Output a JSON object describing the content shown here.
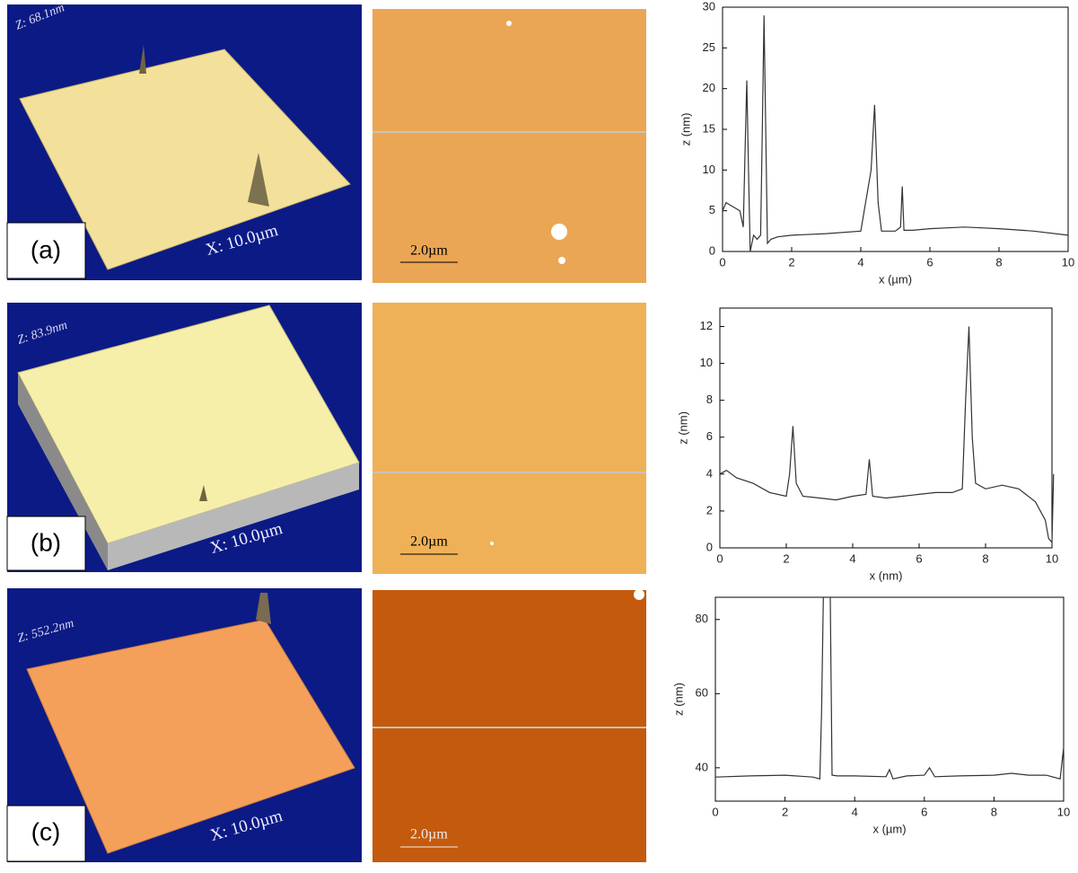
{
  "panels": [
    {
      "label": "(a)",
      "z_range": "Z: 68.1nm",
      "x_range": "X: 10.0µm",
      "scale_bar": "2.0µm"
    },
    {
      "label": "(b)",
      "z_range": "Z: 83.9nm",
      "x_range": "X: 10.0µm",
      "scale_bar": "2.0µm"
    },
    {
      "label": "(c)",
      "z_range": "Z: 552.2nm",
      "x_range": "X: 10.0µm",
      "scale_bar": "2.0µm"
    }
  ],
  "chart_data": [
    {
      "type": "line",
      "x_label": "x (µm)",
      "y_label": "z (nm)",
      "color": "#333333",
      "x": [
        0,
        0.1,
        0.3,
        0.5,
        0.6,
        0.65,
        0.7,
        0.75,
        0.8,
        0.9,
        1.0,
        1.1,
        1.15,
        1.2,
        1.25,
        1.3,
        1.4,
        1.6,
        2,
        3,
        4,
        4.3,
        4.4,
        4.5,
        4.6,
        5,
        5.15,
        5.2,
        5.25,
        5.5,
        6,
        7,
        8,
        9,
        10
      ],
      "values": [
        5,
        6,
        5.5,
        5,
        3,
        12,
        21,
        10,
        0,
        2,
        1.5,
        2,
        15,
        29,
        15,
        1,
        1.5,
        1.8,
        2,
        2.2,
        2.5,
        10,
        18,
        6,
        2.5,
        2.5,
        3,
        8,
        2.6,
        2.6,
        2.8,
        3,
        2.8,
        2.5,
        2
      ],
      "xlim": [
        0,
        10
      ],
      "ylim": [
        0,
        30
      ],
      "xticks": [
        0,
        2,
        4,
        6,
        8,
        10
      ],
      "yticks": [
        0,
        5,
        10,
        15,
        20,
        25,
        30
      ]
    },
    {
      "type": "line",
      "x_label": "x (nm)",
      "y_label": "z (nm)",
      "color": "#333333",
      "x": [
        0,
        0.2,
        0.5,
        1,
        1.5,
        2,
        2.1,
        2.2,
        2.3,
        2.5,
        3,
        3.5,
        4,
        4.4,
        4.5,
        4.6,
        5,
        5.5,
        6,
        6.5,
        7,
        7.3,
        7.4,
        7.5,
        7.6,
        7.7,
        8,
        8.5,
        9,
        9.5,
        9.8,
        9.9,
        10,
        10.05
      ],
      "values": [
        4,
        4.2,
        3.8,
        3.5,
        3,
        2.8,
        4,
        6.6,
        3.5,
        2.8,
        2.7,
        2.6,
        2.8,
        2.9,
        4.8,
        2.8,
        2.7,
        2.8,
        2.9,
        3,
        3,
        3.2,
        8,
        12,
        6,
        3.5,
        3.2,
        3.4,
        3.2,
        2.5,
        1.5,
        0.5,
        0.3,
        4
      ],
      "xlim": [
        0,
        10
      ],
      "ylim": [
        0,
        13
      ],
      "xticks": [
        0,
        2,
        4,
        6,
        8,
        10
      ],
      "yticks": [
        0,
        2,
        4,
        6,
        8,
        10,
        12
      ]
    },
    {
      "type": "line",
      "x_label": "x (µm)",
      "y_label": "z (nm)",
      "color": "#333333",
      "x": [
        0,
        1,
        2,
        2.8,
        3,
        3.05,
        3.1,
        3.3,
        3.35,
        3.5,
        4,
        4.9,
        5,
        5.1,
        5.5,
        6,
        6.15,
        6.3,
        7,
        8,
        8.5,
        9,
        9.5,
        9.9,
        10
      ],
      "values": [
        37.5,
        37.8,
        38,
        37.5,
        37,
        55,
        86,
        86,
        38,
        37.8,
        37.8,
        37.6,
        39.5,
        37,
        37.8,
        38,
        40,
        37.6,
        37.8,
        38,
        38.5,
        38,
        38,
        37,
        45.5
      ],
      "xlim": [
        0,
        10
      ],
      "ylim": [
        31,
        86
      ],
      "xticks": [
        0,
        2,
        4,
        6,
        8,
        10
      ],
      "yticks": [
        40,
        60,
        80
      ]
    }
  ]
}
